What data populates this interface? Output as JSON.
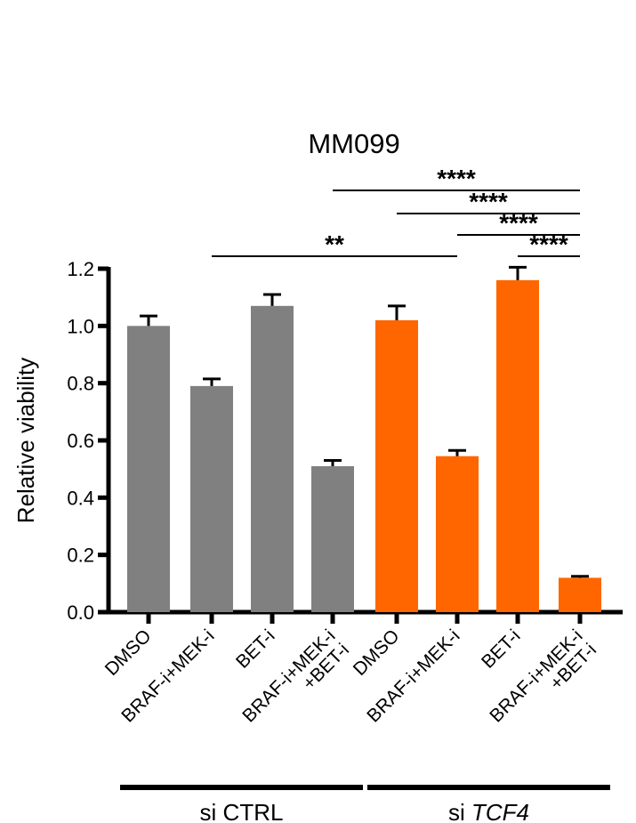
{
  "chart_data": {
    "type": "bar",
    "title": "MM099",
    "ylabel": "Relative viability",
    "xlabel": "",
    "ylim": [
      0,
      1.2
    ],
    "yticks": [
      "0.0",
      "0.2",
      "0.4",
      "0.6",
      "0.8",
      "1.0",
      "1.2"
    ],
    "categories": [
      [
        "DMSO"
      ],
      [
        "BRAF-i+MEK-i"
      ],
      [
        "BET-i"
      ],
      [
        "BRAF-i+MEK-i",
        "+BET-i"
      ],
      [
        "DMSO"
      ],
      [
        "BRAF-i+MEK-i"
      ],
      [
        "BET-i"
      ],
      [
        "BRAF-i+MEK-i",
        "+BET-i"
      ]
    ],
    "values": [
      1.0,
      0.79,
      1.07,
      0.51,
      1.02,
      0.545,
      1.16,
      0.12
    ],
    "errors": [
      0.035,
      0.025,
      0.04,
      0.02,
      0.05,
      0.02,
      0.045,
      0.005
    ],
    "bar_colors": [
      "#808080",
      "#808080",
      "#808080",
      "#808080",
      "#FF6600",
      "#FF6600",
      "#FF6600",
      "#FF6600"
    ],
    "groups": [
      {
        "label": "si CTRL",
        "italic_part": "",
        "from": 0,
        "to": 3
      },
      {
        "label": "si ",
        "italic_part": "TCF4",
        "from": 4,
        "to": 7
      }
    ],
    "significance": [
      {
        "from": 1,
        "to": 5,
        "label": "**"
      },
      {
        "from": 4,
        "to": 7,
        "label": "****"
      },
      {
        "from": 5,
        "to": 7,
        "label": "****"
      },
      {
        "from": 6,
        "to": 7,
        "label": "****"
      },
      {
        "from": 3,
        "to": 7,
        "label": "****"
      }
    ],
    "grid": false,
    "legend": "none"
  }
}
